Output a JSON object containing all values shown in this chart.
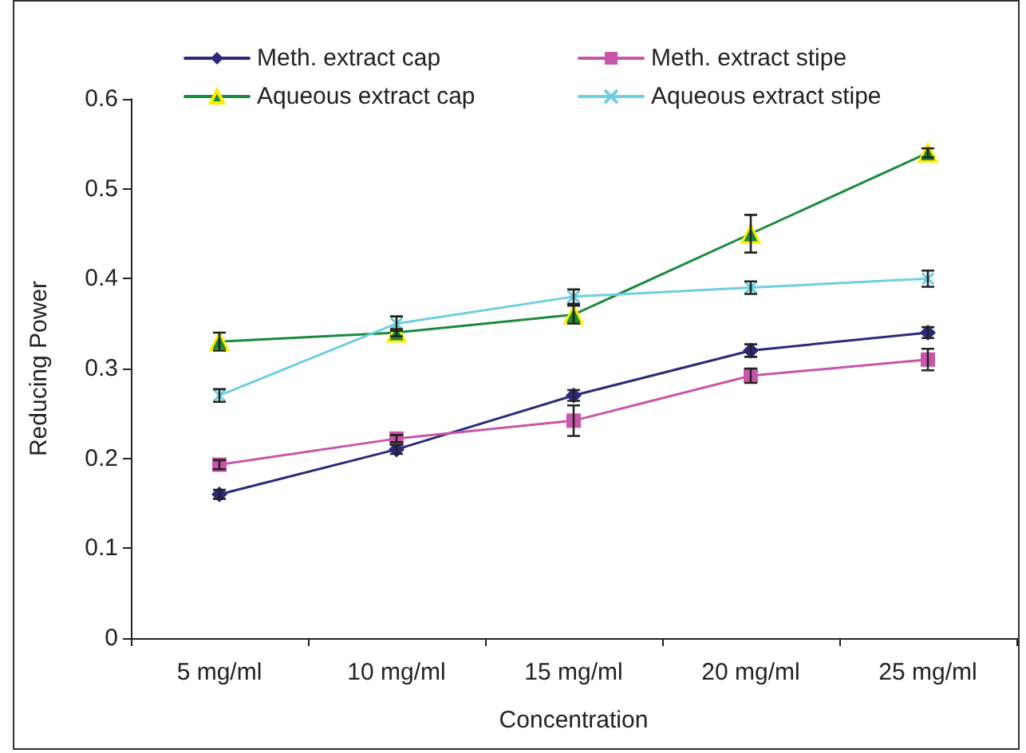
{
  "chart_data": {
    "type": "line",
    "xlabel": "Concentration",
    "ylabel": "Reducing Power",
    "categories": [
      "5 mg/ml",
      "10 mg/ml",
      "15 mg/ml",
      "20 mg/ml",
      "25 mg/ml"
    ],
    "series": [
      {
        "name": "Meth. extract cap",
        "color": "#2b2a7a",
        "marker": "diamond",
        "values": [
          0.16,
          0.21,
          0.27,
          0.32,
          0.34
        ],
        "errors": [
          0.005,
          0.005,
          0.006,
          0.007,
          0.006
        ]
      },
      {
        "name": "Meth. extract stipe",
        "color": "#c855a8",
        "marker": "square",
        "values": [
          0.193,
          0.222,
          0.242,
          0.292,
          0.31
        ],
        "errors": [
          0.005,
          0.004,
          0.017,
          0.008,
          0.012
        ]
      },
      {
        "name": "Aqueous extract cap",
        "color": "#1a8a3c",
        "marker": "triangle",
        "values": [
          0.33,
          0.34,
          0.36,
          0.45,
          0.54
        ],
        "errors": [
          0.01,
          0.004,
          0.01,
          0.021,
          0.005
        ]
      },
      {
        "name": "Aqueous extract stipe",
        "color": "#6dcfe0",
        "marker": "cross",
        "values": [
          0.27,
          0.35,
          0.38,
          0.39,
          0.4
        ],
        "errors": [
          0.007,
          0.008,
          0.008,
          0.007,
          0.009
        ]
      }
    ],
    "ylim": [
      0,
      0.6
    ],
    "yticks": [
      0,
      0.1,
      0.2,
      0.3,
      0.4,
      0.5,
      0.6
    ],
    "grid": false,
    "legend": "top",
    "line_style": "solid"
  }
}
